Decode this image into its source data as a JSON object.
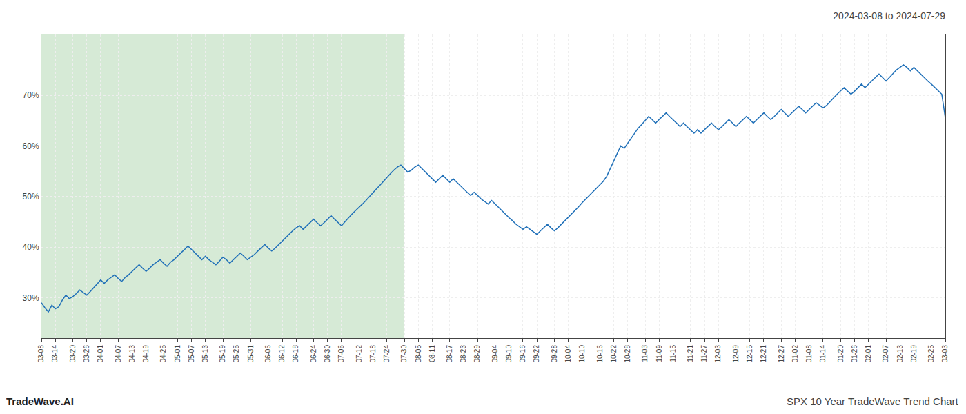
{
  "chart_data": {
    "type": "line",
    "title": "2024-03-08 to 2024-07-29",
    "annotations": [
      "TradeWave.AI",
      "SPX 10 Year TradeWave Trend Chart"
    ],
    "categories": [
      "03-08",
      null,
      null,
      null,
      "03-14",
      null,
      null,
      null,
      null,
      "03-20",
      null,
      null,
      null,
      "03-26",
      null,
      null,
      null,
      "04-01",
      null,
      null,
      null,
      null,
      "04-07",
      null,
      null,
      null,
      "04-13",
      null,
      null,
      null,
      "04-19",
      null,
      null,
      null,
      null,
      "04-25",
      null,
      null,
      null,
      "05-01",
      null,
      null,
      null,
      "05-07",
      null,
      null,
      null,
      "05-13",
      null,
      null,
      null,
      null,
      "05-19",
      null,
      null,
      null,
      "05-25",
      null,
      null,
      null,
      "05-31",
      null,
      null,
      null,
      null,
      "06-06",
      null,
      null,
      null,
      "06-12",
      null,
      null,
      null,
      "06-18",
      null,
      null,
      null,
      null,
      "06-24",
      null,
      null,
      null,
      "06-30",
      null,
      null,
      null,
      "07-06",
      null,
      null,
      null,
      null,
      "07-12",
      null,
      null,
      null,
      "07-18",
      null,
      null,
      null,
      "07-24",
      null,
      null,
      null,
      null,
      "07-30",
      null,
      null,
      null,
      "08-05",
      null,
      null,
      null,
      "08-11",
      null,
      null,
      null,
      null,
      "08-17",
      null,
      null,
      null,
      "08-23",
      null,
      null,
      null,
      "08-29",
      null,
      null,
      null,
      null,
      "09-04",
      null,
      null,
      null,
      "09-10",
      null,
      null,
      null,
      "09-16",
      null,
      null,
      null,
      "09-22",
      null,
      null,
      null,
      null,
      "09-28",
      null,
      null,
      null,
      "10-04",
      null,
      null,
      null,
      "10-10",
      null,
      null,
      null,
      null,
      "10-16",
      null,
      null,
      null,
      "10-22",
      null,
      null,
      null,
      "10-28",
      null,
      null,
      null,
      null,
      "11-03",
      null,
      null,
      null,
      "11-09",
      null,
      null,
      null,
      "11-15",
      null,
      null,
      null,
      null,
      "11-21",
      null,
      null,
      null,
      "11-27",
      null,
      null,
      null,
      "12-03",
      null,
      null,
      null,
      null,
      "12-09",
      null,
      null,
      null,
      "12-15",
      null,
      null,
      null,
      "12-21",
      null,
      null,
      null,
      null,
      "12-27",
      null,
      null,
      null,
      "01-02",
      null,
      null,
      null,
      "01-08",
      null,
      null,
      null,
      "01-14",
      null,
      null,
      null,
      null,
      "01-20",
      null,
      null,
      null,
      "01-26",
      null,
      null,
      null,
      "02-01",
      null,
      null,
      null,
      null,
      "02-07",
      null,
      null,
      null,
      "02-13",
      null,
      null,
      null,
      "02-19",
      null,
      null,
      null,
      null,
      "02-25",
      null,
      null,
      null,
      "03-03"
    ],
    "values": [
      29.0,
      28.0,
      27.2,
      28.5,
      27.8,
      28.2,
      29.5,
      30.5,
      29.8,
      30.2,
      30.8,
      31.5,
      31.0,
      30.5,
      31.2,
      32.0,
      32.8,
      33.5,
      32.8,
      33.5,
      34.0,
      34.5,
      33.8,
      33.2,
      34.0,
      34.5,
      35.2,
      35.8,
      36.5,
      35.8,
      35.2,
      35.8,
      36.5,
      37.0,
      37.5,
      36.8,
      36.2,
      37.0,
      37.5,
      38.2,
      38.8,
      39.5,
      40.2,
      39.5,
      38.8,
      38.2,
      37.5,
      38.2,
      37.5,
      37.0,
      36.5,
      37.2,
      38.0,
      37.5,
      36.8,
      37.5,
      38.2,
      38.8,
      38.2,
      37.5,
      38.0,
      38.5,
      39.2,
      39.8,
      40.5,
      39.8,
      39.2,
      39.8,
      40.5,
      41.2,
      41.8,
      42.5,
      43.2,
      43.8,
      44.2,
      43.5,
      44.2,
      44.8,
      45.5,
      44.8,
      44.2,
      44.8,
      45.5,
      46.2,
      45.5,
      44.8,
      44.2,
      45.0,
      45.8,
      46.5,
      47.2,
      47.8,
      48.5,
      49.2,
      50.0,
      50.8,
      51.5,
      52.2,
      53.0,
      53.8,
      54.5,
      55.2,
      55.8,
      56.2,
      55.5,
      54.8,
      55.2,
      55.8,
      56.2,
      55.5,
      54.8,
      54.2,
      53.5,
      52.8,
      53.5,
      54.2,
      53.5,
      52.8,
      53.5,
      52.8,
      52.2,
      51.5,
      50.8,
      50.2,
      50.8,
      50.2,
      49.5,
      49.0,
      48.5,
      49.2,
      48.5,
      47.8,
      47.2,
      46.5,
      45.8,
      45.2,
      44.5,
      44.0,
      43.5,
      44.0,
      43.5,
      43.0,
      42.5,
      43.2,
      43.8,
      44.5,
      43.8,
      43.2,
      43.8,
      44.5,
      45.2,
      45.8,
      46.5,
      47.2,
      48.0,
      48.8,
      49.5,
      50.2,
      50.8,
      51.5,
      52.2,
      53.0,
      54.0,
      55.5,
      57.0,
      58.5,
      60.0,
      59.5,
      60.5,
      61.5,
      62.5,
      63.5,
      64.2,
      65.0,
      65.8,
      65.2,
      64.5,
      65.2,
      65.8,
      66.5,
      65.8,
      65.2,
      64.5,
      63.8,
      64.5,
      63.8,
      63.2,
      62.5,
      63.2,
      62.5,
      63.2,
      63.8,
      64.5,
      63.8,
      63.2,
      63.8,
      64.5,
      65.2,
      64.5,
      63.8,
      64.5,
      65.2,
      65.8,
      65.2,
      64.5,
      65.2,
      65.8,
      66.5,
      65.8,
      65.2,
      65.8,
      66.5,
      67.2,
      66.5,
      65.8,
      66.5,
      67.2,
      67.8,
      67.2,
      66.5,
      67.2,
      67.8,
      68.5,
      68.0,
      67.5,
      68.0,
      68.8,
      69.5,
      70.2,
      70.8,
      71.5,
      70.8,
      70.2,
      70.8,
      71.5,
      72.2,
      71.5,
      72.2,
      72.8,
      73.5,
      74.2,
      73.5,
      72.8,
      73.5,
      74.2,
      75.0,
      75.5,
      76.0,
      75.5,
      74.8,
      75.5,
      74.8,
      74.2,
      73.5,
      72.8,
      72.2,
      71.5,
      70.8,
      70.2,
      65.5
    ],
    "color": "#2070b8",
    "ylim": [
      22,
      82
    ],
    "yticks": [
      {
        "value": 30,
        "label": "30%"
      },
      {
        "value": 40,
        "label": "40%"
      },
      {
        "value": 50,
        "label": "50%"
      },
      {
        "value": 60,
        "label": "60%"
      },
      {
        "value": 70,
        "label": "70%"
      }
    ],
    "grid": true,
    "shaded_range": [
      "03-08",
      "07-30"
    ],
    "shade_color": "#d6ead6"
  }
}
